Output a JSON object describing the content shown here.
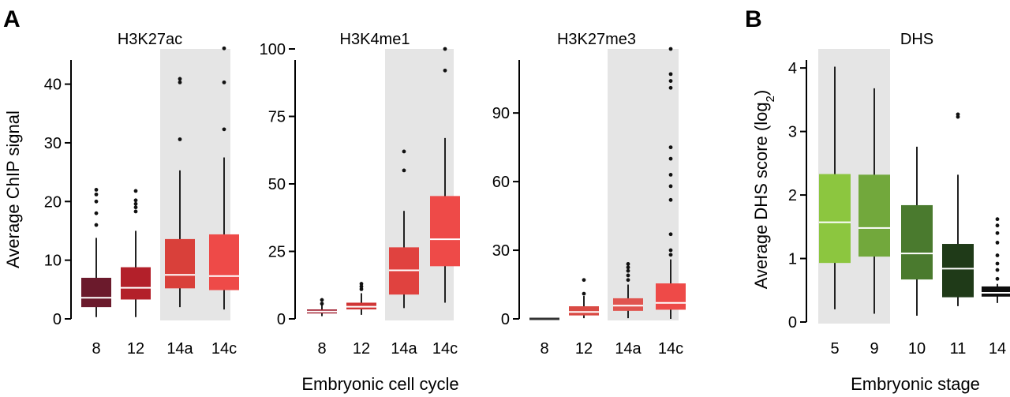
{
  "figure": {
    "panel_a_letter": "A",
    "panel_b_letter": "B",
    "panel_a_xlabel": "Embryonic cell cycle",
    "panel_a_ylabel": "Average ChIP signal",
    "panel_b_xlabel": "Embryonic stage",
    "panel_b_ylabel_main": "Average DHS score (log",
    "panel_b_ylabel_sub": "2",
    "panel_b_ylabel_close": ")"
  },
  "chart_data": [
    {
      "type": "box",
      "title": "H3K27ac",
      "categories": [
        "8",
        "12",
        "14a",
        "14c"
      ],
      "ylim": [
        0,
        46
      ],
      "yticks": [
        0,
        10,
        20,
        30,
        40
      ],
      "highlight_categories": [
        "14a",
        "14c"
      ],
      "colors": [
        "#6b1a2c",
        "#b3202a",
        "#d9403a",
        "#ee4a48"
      ],
      "boxes": [
        {
          "whisker_low": 0.3,
          "q1": 2,
          "median": 3.6,
          "q3": 7,
          "whisker_high": 13.8,
          "outliers": [
            16,
            18,
            20,
            21.2,
            22
          ]
        },
        {
          "whisker_low": 0.3,
          "q1": 3.3,
          "median": 5.3,
          "q3": 8.8,
          "whisker_high": 15,
          "outliers": [
            18.3,
            19,
            19.6,
            20.2,
            21.8
          ]
        },
        {
          "whisker_low": 2,
          "q1": 5.2,
          "median": 7.5,
          "q3": 13.6,
          "whisker_high": 25.3,
          "outliers": [
            30.6,
            40.3,
            40.9
          ]
        },
        {
          "whisker_low": 1.6,
          "q1": 4.9,
          "median": 7.3,
          "q3": 14.4,
          "whisker_high": 27.5,
          "outliers": [
            32.3,
            40.3,
            46.1
          ]
        }
      ]
    },
    {
      "type": "box",
      "title": "H3K4me1",
      "categories": [
        "8",
        "12",
        "14a",
        "14c"
      ],
      "ylim": [
        0,
        100
      ],
      "yticks": [
        0,
        25,
        50,
        75,
        100
      ],
      "highlight_categories": [
        "14a",
        "14c"
      ],
      "colors": [
        "#a01e2e",
        "#d03535",
        "#e0423f",
        "#ee4a48"
      ],
      "boxes": [
        {
          "whisker_low": 1,
          "q1": 2,
          "median": 2.7,
          "q3": 3.5,
          "whisker_high": 5,
          "outliers": [
            5.6,
            7
          ]
        },
        {
          "whisker_low": 1.5,
          "q1": 3.5,
          "median": 4.5,
          "q3": 6,
          "whisker_high": 9.5,
          "outliers": [
            11,
            12,
            13
          ]
        },
        {
          "whisker_low": 4,
          "q1": 9,
          "median": 18,
          "q3": 26.5,
          "whisker_high": 40,
          "outliers": [
            55,
            62
          ]
        },
        {
          "whisker_low": 6,
          "q1": 19.5,
          "median": 29.5,
          "q3": 45.5,
          "whisker_high": 67,
          "outliers": [
            92,
            100
          ]
        }
      ]
    },
    {
      "type": "box",
      "title": "H3K27me3",
      "categories": [
        "8",
        "12",
        "14a",
        "14c"
      ],
      "ylim": [
        0,
        118
      ],
      "yticks": [
        0,
        30,
        60,
        90
      ],
      "highlight_categories": [
        "14a",
        "14c"
      ],
      "colors": [
        "#555555",
        "#d94a44",
        "#e0544f",
        "#ee4a48"
      ],
      "boxes": [
        {
          "whisker_low": 0,
          "q1": 0,
          "median": 0,
          "q3": 0,
          "whisker_high": 0,
          "outliers": []
        },
        {
          "whisker_low": 0.3,
          "q1": 1.5,
          "median": 3,
          "q3": 5.5,
          "whisker_high": 10,
          "outliers": [
            11,
            17
          ]
        },
        {
          "whisker_low": 0.3,
          "q1": 3.5,
          "median": 5.8,
          "q3": 9,
          "whisker_high": 15,
          "outliers": [
            17,
            19,
            21,
            22.5,
            24
          ]
        },
        {
          "whisker_low": 0,
          "q1": 4,
          "median": 7,
          "q3": 15.5,
          "whisker_high": 26,
          "outliers": [
            28,
            30,
            37,
            52,
            58,
            63,
            70,
            75,
            101,
            104,
            107,
            118
          ]
        }
      ]
    },
    {
      "type": "box",
      "title": "DHS",
      "categories": [
        "5",
        "9",
        "10",
        "11",
        "14"
      ],
      "ylim": [
        0,
        4.3
      ],
      "yticks": [
        0,
        1,
        2,
        3,
        4
      ],
      "highlight_categories": [
        "5",
        "9"
      ],
      "colors": [
        "#8cc63f",
        "#72a83c",
        "#4a7a2e",
        "#1f3a18",
        "#0d0d0d"
      ],
      "boxes": [
        {
          "whisker_low": 0.2,
          "q1": 0.93,
          "median": 1.57,
          "q3": 2.33,
          "whisker_high": 4.02,
          "outliers": []
        },
        {
          "whisker_low": 0.13,
          "q1": 1.03,
          "median": 1.48,
          "q3": 2.32,
          "whisker_high": 3.68,
          "outliers": []
        },
        {
          "whisker_low": 0.1,
          "q1": 0.67,
          "median": 1.08,
          "q3": 1.84,
          "whisker_high": 2.76,
          "outliers": []
        },
        {
          "whisker_low": 0.25,
          "q1": 0.39,
          "median": 0.84,
          "q3": 1.23,
          "whisker_high": 2.32,
          "outliers": [
            3.23,
            3.27
          ]
        },
        {
          "whisker_low": 0.3,
          "q1": 0.4,
          "median": 0.46,
          "q3": 0.56,
          "whisker_high": 0.6,
          "outliers": [
            0.68,
            0.82,
            0.92,
            1.05,
            1.25,
            1.4,
            1.52,
            1.62
          ]
        }
      ]
    }
  ]
}
